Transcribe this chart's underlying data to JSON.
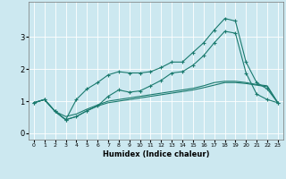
{
  "title": "",
  "xlabel": "Humidex (Indice chaleur)",
  "bg_color": "#cce8f0",
  "line_color": "#1a7a6e",
  "grid_color": "#ffffff",
  "xlim": [
    -0.5,
    23.5
  ],
  "ylim": [
    -0.2,
    4.1
  ],
  "xticks": [
    0,
    1,
    2,
    3,
    4,
    5,
    6,
    7,
    8,
    9,
    10,
    11,
    12,
    13,
    14,
    15,
    16,
    17,
    18,
    19,
    20,
    21,
    22,
    23
  ],
  "yticks": [
    0,
    1,
    2,
    3
  ],
  "line1_x": [
    0,
    1,
    2,
    3,
    4,
    5,
    6,
    7,
    8,
    9,
    10,
    11,
    12,
    13,
    14,
    15,
    16,
    17,
    18,
    19,
    20,
    21,
    22,
    23
  ],
  "line1_y": [
    0.95,
    1.05,
    0.68,
    0.42,
    0.52,
    0.7,
    0.85,
    0.95,
    1.0,
    1.05,
    1.1,
    1.15,
    1.2,
    1.25,
    1.3,
    1.35,
    1.42,
    1.5,
    1.58,
    1.58,
    1.55,
    1.5,
    1.45,
    0.95
  ],
  "line2_x": [
    0,
    1,
    2,
    3,
    4,
    5,
    6,
    7,
    8,
    9,
    10,
    11,
    12,
    13,
    14,
    15,
    16,
    17,
    18,
    19,
    20,
    21,
    22,
    23
  ],
  "line2_y": [
    0.95,
    1.05,
    0.68,
    0.42,
    1.05,
    1.38,
    1.58,
    1.82,
    1.92,
    1.88,
    1.88,
    1.92,
    2.05,
    2.22,
    2.22,
    2.52,
    2.82,
    3.22,
    3.58,
    3.5,
    2.22,
    1.58,
    1.38,
    0.95
  ],
  "line3_x": [
    0,
    1,
    2,
    3,
    4,
    5,
    6,
    7,
    8,
    9,
    10,
    11,
    12,
    13,
    14,
    15,
    16,
    17,
    18,
    19,
    20,
    21,
    22,
    23
  ],
  "line3_y": [
    0.95,
    1.05,
    0.68,
    0.42,
    0.52,
    0.7,
    0.85,
    1.15,
    1.35,
    1.28,
    1.32,
    1.48,
    1.65,
    1.88,
    1.92,
    2.12,
    2.42,
    2.82,
    3.18,
    3.12,
    1.88,
    1.22,
    1.05,
    0.95
  ],
  "line4_x": [
    0,
    1,
    2,
    3,
    4,
    5,
    6,
    7,
    8,
    9,
    10,
    11,
    12,
    13,
    14,
    15,
    16,
    17,
    18,
    19,
    20,
    21,
    22,
    23
  ],
  "line4_y": [
    0.95,
    1.05,
    0.68,
    0.52,
    0.6,
    0.75,
    0.88,
    1.0,
    1.05,
    1.1,
    1.15,
    1.2,
    1.25,
    1.3,
    1.35,
    1.4,
    1.48,
    1.58,
    1.62,
    1.62,
    1.58,
    1.52,
    1.48,
    0.95
  ]
}
